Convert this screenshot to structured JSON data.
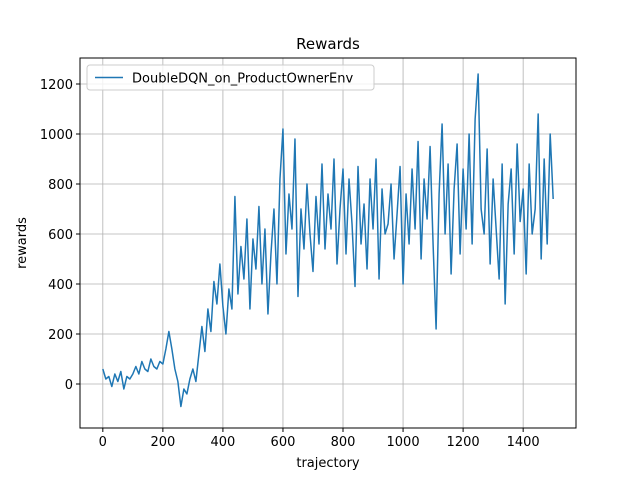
{
  "chart_data": {
    "type": "line",
    "title": "Rewards",
    "x_label": "trajectory",
    "y_label": "rewards",
    "x": [
      0,
      10,
      20,
      30,
      40,
      50,
      60,
      70,
      80,
      90,
      100,
      110,
      120,
      130,
      140,
      150,
      160,
      170,
      180,
      190,
      200,
      210,
      220,
      230,
      240,
      250,
      260,
      270,
      280,
      290,
      300,
      310,
      320,
      330,
      340,
      350,
      360,
      370,
      380,
      390,
      400,
      410,
      420,
      430,
      440,
      450,
      460,
      470,
      480,
      490,
      500,
      510,
      520,
      530,
      540,
      550,
      560,
      570,
      580,
      590,
      600,
      610,
      620,
      630,
      640,
      650,
      660,
      670,
      680,
      690,
      700,
      710,
      720,
      730,
      740,
      750,
      760,
      770,
      780,
      790,
      800,
      810,
      820,
      830,
      840,
      850,
      860,
      870,
      880,
      890,
      900,
      910,
      920,
      930,
      940,
      950,
      960,
      970,
      980,
      990,
      1000,
      1010,
      1020,
      1030,
      1040,
      1050,
      1060,
      1070,
      1080,
      1090,
      1100,
      1110,
      1120,
      1130,
      1140,
      1150,
      1160,
      1170,
      1180,
      1190,
      1200,
      1210,
      1220,
      1230,
      1240,
      1250,
      1260,
      1270,
      1280,
      1290,
      1300,
      1310,
      1320,
      1330,
      1340,
      1350,
      1360,
      1370,
      1380,
      1390,
      1400,
      1410,
      1420,
      1430,
      1440,
      1450,
      1460,
      1470,
      1480,
      1490,
      1500
    ],
    "series": [
      {
        "name": "DoubleDQN_on_ProductOwnerEnv",
        "color": "#1f77b4",
        "values": [
          60,
          20,
          30,
          -10,
          40,
          10,
          50,
          -20,
          30,
          20,
          40,
          70,
          40,
          90,
          60,
          50,
          100,
          70,
          60,
          90,
          80,
          140,
          210,
          140,
          60,
          10,
          -90,
          -20,
          -40,
          20,
          60,
          10,
          120,
          230,
          130,
          300,
          210,
          410,
          320,
          480,
          310,
          200,
          380,
          300,
          750,
          360,
          550,
          420,
          660,
          300,
          580,
          460,
          710,
          400,
          620,
          280,
          520,
          700,
          400,
          820,
          1020,
          520,
          760,
          620,
          980,
          350,
          700,
          540,
          800,
          600,
          450,
          750,
          560,
          880,
          540,
          760,
          620,
          900,
          480,
          700,
          860,
          520,
          820,
          640,
          390,
          870,
          560,
          720,
          460,
          820,
          620,
          900,
          420,
          780,
          600,
          640,
          800,
          500,
          680,
          870,
          400,
          760,
          560,
          860,
          620,
          970,
          500,
          820,
          660,
          950,
          560,
          220,
          760,
          1040,
          600,
          880,
          440,
          780,
          960,
          520,
          860,
          620,
          1000,
          560,
          1060,
          1240,
          700,
          600,
          940,
          480,
          820,
          620,
          420,
          880,
          320,
          720,
          860,
          520,
          960,
          650,
          780,
          440,
          880,
          600,
          700,
          1080,
          500,
          900,
          560,
          1000,
          740
        ]
      }
    ],
    "xlim": [
      -76,
      1576
    ],
    "ylim": [
      -176,
      1304
    ],
    "xticks": [
      0,
      200,
      400,
      600,
      800,
      1000,
      1200,
      1400
    ],
    "yticks": [
      0,
      200,
      400,
      600,
      800,
      1000,
      1200
    ],
    "grid": true,
    "legend": "upper left"
  }
}
